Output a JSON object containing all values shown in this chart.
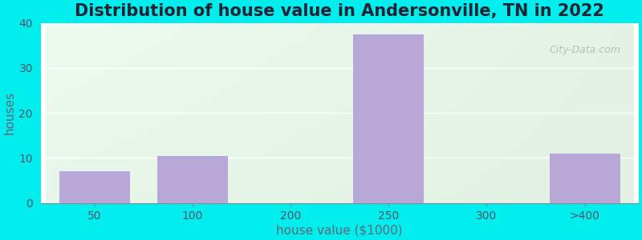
{
  "title": "Distribution of house value in Andersonville, TN in 2022",
  "xlabel": "house value ($1000)",
  "ylabel": "houses",
  "categories": [
    "50",
    "100",
    "200",
    "250",
    "300",
    ">400"
  ],
  "values": [
    7,
    10.5,
    0,
    37.5,
    0,
    11
  ],
  "bar_color": "#b8a8d8",
  "ylim": [
    0,
    40
  ],
  "yticks": [
    0,
    10,
    20,
    30,
    40
  ],
  "background_color": "#00eeee",
  "grid_color": "#ffffff",
  "title_fontsize": 15,
  "label_fontsize": 11,
  "tick_fontsize": 10,
  "watermark": "City-Data.com"
}
